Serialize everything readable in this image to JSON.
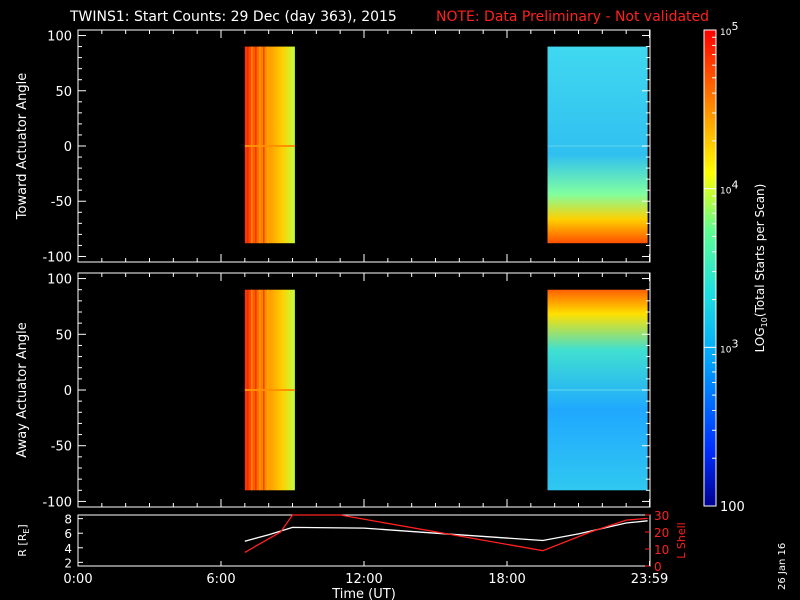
{
  "header": {
    "title": "TWINS1: Start Counts: 29 Dec (day 363), 2015",
    "note": "NOTE: Data Preliminary - Not validated"
  },
  "colors": {
    "background": "#000000",
    "axes": "#ffffff",
    "note": "#ff2020",
    "lshell": "#ff2020",
    "radius": "#ffffff"
  },
  "chart_data": [
    {
      "type": "heatmap",
      "panel": "toward",
      "ylabel": "Toward Actuator Angle",
      "ylim": [
        -105,
        105
      ],
      "yticks": [
        100,
        50,
        0,
        -50,
        -100
      ],
      "xlim": [
        0,
        24
      ],
      "segments": [
        {
          "t_start": 7.0,
          "t_end": 9.1,
          "angle_min": -88,
          "angle_max": 90,
          "level": "high",
          "description_colors": [
            "#ff3000",
            "#ffd000"
          ]
        },
        {
          "t_start": 19.7,
          "t_end": 23.9,
          "angle_min": -88,
          "angle_max": 90,
          "level": "mid",
          "description_colors": [
            "#30c8ff",
            "#ff6000"
          ]
        }
      ]
    },
    {
      "type": "heatmap",
      "panel": "away",
      "ylabel": "Away Actuator Angle",
      "ylim": [
        -105,
        105
      ],
      "yticks": [
        100,
        50,
        0,
        -50,
        -100
      ],
      "xlim": [
        0,
        24
      ],
      "segments": [
        {
          "t_start": 7.0,
          "t_end": 9.1,
          "angle_min": -90,
          "angle_max": 90,
          "level": "high"
        },
        {
          "t_start": 19.7,
          "t_end": 23.9,
          "angle_min": -90,
          "angle_max": 90,
          "level": "mid"
        }
      ]
    },
    {
      "type": "line",
      "panel": "orbit",
      "ylabel_left": "R [R",
      "ylabel_left_sub": "E",
      "ylabel_left_end": "]",
      "ylabel_right": "L Shell",
      "yticks_left": [
        8,
        6,
        4,
        2
      ],
      "yticks_right": [
        30,
        20,
        10,
        0
      ],
      "ylim_left": [
        1.5,
        8.5
      ],
      "ylim_right": [
        0,
        30
      ],
      "series": [
        {
          "name": "R",
          "axis": "left",
          "x": [
            7.0,
            8.0,
            9.0,
            12.0,
            15.0,
            19.5,
            21.0,
            23.0,
            23.9
          ],
          "y": [
            4.9,
            5.8,
            6.8,
            6.7,
            6.0,
            5.0,
            5.9,
            7.4,
            7.7
          ]
        },
        {
          "name": "L Shell",
          "axis": "right",
          "x": [
            7.0,
            8.5,
            9.0,
            11.0,
            19.5,
            21.5,
            23.0,
            23.9
          ],
          "y": [
            8,
            20,
            30,
            30,
            9,
            20,
            27,
            28
          ]
        }
      ]
    }
  ],
  "xaxis": {
    "label": "Time (UT)",
    "ticks": [
      {
        "value": 0,
        "label": "0:00"
      },
      {
        "value": 6,
        "label": "6:00"
      },
      {
        "value": 12,
        "label": "12:00"
      },
      {
        "value": 18,
        "label": "18:00"
      },
      {
        "value": 23.98,
        "label": "23:59"
      }
    ]
  },
  "colorbar": {
    "label_prefix": "LOG",
    "label_sub": "10",
    "label_suffix": "(Total Starts per Scan)",
    "ticks": [
      {
        "value": 5,
        "base": "10",
        "exp": "5"
      },
      {
        "value": 4,
        "base": "10",
        "exp": "4"
      },
      {
        "value": 3,
        "base": "10",
        "exp": "3"
      },
      {
        "value": 2,
        "base": "100",
        "exp": ""
      }
    ],
    "range_log": [
      2,
      5
    ]
  },
  "footer": {
    "date_stamp": "26 Jan 16"
  }
}
